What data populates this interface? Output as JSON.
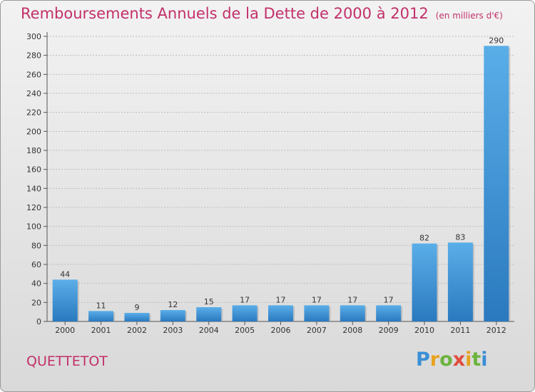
{
  "header": {
    "title": "Remboursements Annuels de la Dette de 2000 à 2012",
    "unit": "(en milliers d'€)"
  },
  "commune": "QUETTETOT",
  "logo": {
    "text": "Proxiti",
    "letter_colors": [
      "#3a8fd6",
      "#e8a21e",
      "#6db33f",
      "#e14b3b",
      "#e8a21e",
      "#6db33f",
      "#3a8fd6"
    ]
  },
  "colors": {
    "title": "#c2306a",
    "bar_top": "#5aaee8",
    "bar_bottom": "#2a79bf",
    "axis": "#555555",
    "grid": "#bdbdbd"
  },
  "chart_data": {
    "type": "bar",
    "title": "Remboursements Annuels de la Dette de 2000 à 2012",
    "categories": [
      "2000",
      "2001",
      "2002",
      "2003",
      "2004",
      "2005",
      "2006",
      "2007",
      "2008",
      "2009",
      "2010",
      "2011",
      "2012"
    ],
    "values": [
      44,
      11,
      9,
      12,
      15,
      17,
      17,
      17,
      17,
      17,
      82,
      83,
      290
    ],
    "ylim": [
      0,
      300
    ],
    "yticks": [
      0,
      20,
      40,
      60,
      80,
      100,
      120,
      140,
      160,
      180,
      200,
      220,
      240,
      260,
      280,
      300
    ],
    "grid": true,
    "data_labels": true
  }
}
